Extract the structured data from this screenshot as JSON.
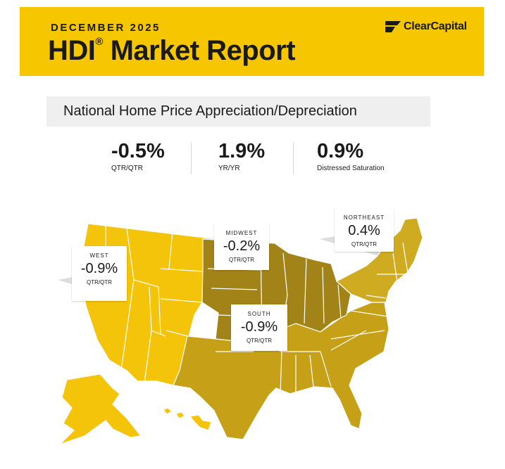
{
  "header": {
    "date": "DECEMBER 2025",
    "title": "HDI",
    "title_reg": "®",
    "title_rest": " Market Report",
    "logo_text": "ClearCapital",
    "logo_icon": "clear-capital-logo-icon",
    "banner_color": "#f6c700"
  },
  "section": {
    "title": "National Home Price Appreciation/Depreciation"
  },
  "stats": [
    {
      "value": "-0.5%",
      "label": "QTR/QTR"
    },
    {
      "value": "1.9%",
      "label": "YR/YR"
    },
    {
      "value": "0.9%",
      "label": "Distressed Saturation"
    }
  ],
  "regions": {
    "west": {
      "name": "WEST",
      "value": "-0.9%",
      "label": "QTR/QTR",
      "color": "#f4c40a"
    },
    "midwest": {
      "name": "MIDWEST",
      "value": "-0.2%",
      "label": "QTR/QTR",
      "color": "#a28318"
    },
    "northeast": {
      "name": "NORTHEAST",
      "value": "0.4%",
      "label": "QTR/QTR",
      "color": "#cfab22"
    },
    "south": {
      "name": "SOUTH",
      "value": "-0.9%",
      "label": "QTR/QTR",
      "color": "#c6a016"
    }
  }
}
